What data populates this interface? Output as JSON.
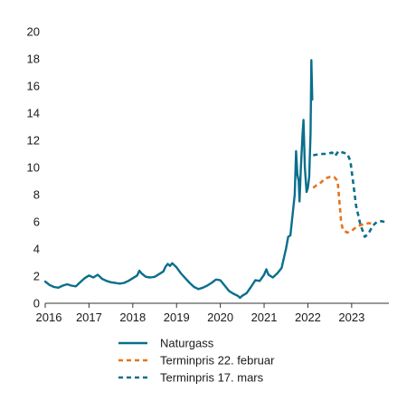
{
  "chart_data": {
    "type": "line",
    "title": "",
    "xlabel": "",
    "ylabel": "",
    "ylim": [
      0,
      20
    ],
    "yticks": [
      0,
      2,
      4,
      6,
      8,
      10,
      12,
      14,
      16,
      18,
      20
    ],
    "xlim": [
      2016.0,
      2023.85
    ],
    "xticks": [
      {
        "label": "2016",
        "value": 2016
      },
      {
        "label": "2017",
        "value": 2017
      },
      {
        "label": "2018",
        "value": 2018
      },
      {
        "label": "2019",
        "value": 2019
      },
      {
        "label": "2020",
        "value": 2020
      },
      {
        "label": "2021",
        "value": 2021
      },
      {
        "label": "2022",
        "value": 2022
      },
      {
        "label": "2023",
        "value": 2023
      }
    ],
    "grid": false,
    "legend_position": "bottom",
    "series": [
      {
        "name": "Naturgass",
        "color": "#0a6f8c",
        "dash": "solid",
        "points": [
          [
            2016.0,
            1.6
          ],
          [
            2016.1,
            1.35
          ],
          [
            2016.2,
            1.2
          ],
          [
            2016.3,
            1.15
          ],
          [
            2016.4,
            1.3
          ],
          [
            2016.5,
            1.4
          ],
          [
            2016.6,
            1.3
          ],
          [
            2016.7,
            1.25
          ],
          [
            2016.8,
            1.55
          ],
          [
            2016.9,
            1.85
          ],
          [
            2017.0,
            2.05
          ],
          [
            2017.1,
            1.9
          ],
          [
            2017.2,
            2.1
          ],
          [
            2017.3,
            1.8
          ],
          [
            2017.4,
            1.65
          ],
          [
            2017.5,
            1.55
          ],
          [
            2017.6,
            1.5
          ],
          [
            2017.7,
            1.45
          ],
          [
            2017.8,
            1.5
          ],
          [
            2017.9,
            1.65
          ],
          [
            2018.0,
            1.85
          ],
          [
            2018.1,
            2.05
          ],
          [
            2018.15,
            2.4
          ],
          [
            2018.2,
            2.2
          ],
          [
            2018.3,
            1.95
          ],
          [
            2018.4,
            1.9
          ],
          [
            2018.5,
            1.95
          ],
          [
            2018.6,
            2.15
          ],
          [
            2018.7,
            2.35
          ],
          [
            2018.75,
            2.7
          ],
          [
            2018.8,
            2.9
          ],
          [
            2018.85,
            2.75
          ],
          [
            2018.9,
            2.95
          ],
          [
            2019.0,
            2.65
          ],
          [
            2019.1,
            2.2
          ],
          [
            2019.2,
            1.85
          ],
          [
            2019.3,
            1.5
          ],
          [
            2019.4,
            1.2
          ],
          [
            2019.5,
            1.05
          ],
          [
            2019.6,
            1.15
          ],
          [
            2019.7,
            1.3
          ],
          [
            2019.8,
            1.5
          ],
          [
            2019.9,
            1.75
          ],
          [
            2020.0,
            1.7
          ],
          [
            2020.1,
            1.3
          ],
          [
            2020.2,
            0.9
          ],
          [
            2020.3,
            0.7
          ],
          [
            2020.4,
            0.55
          ],
          [
            2020.45,
            0.4
          ],
          [
            2020.5,
            0.55
          ],
          [
            2020.6,
            0.75
          ],
          [
            2020.7,
            1.2
          ],
          [
            2020.8,
            1.7
          ],
          [
            2020.9,
            1.65
          ],
          [
            2021.0,
            2.1
          ],
          [
            2021.05,
            2.5
          ],
          [
            2021.1,
            2.1
          ],
          [
            2021.2,
            1.9
          ],
          [
            2021.3,
            2.2
          ],
          [
            2021.4,
            2.6
          ],
          [
            2021.45,
            3.3
          ],
          [
            2021.5,
            4.0
          ],
          [
            2021.55,
            4.9
          ],
          [
            2021.6,
            5.0
          ],
          [
            2021.65,
            6.5
          ],
          [
            2021.7,
            8.0
          ],
          [
            2021.73,
            11.2
          ],
          [
            2021.76,
            9.5
          ],
          [
            2021.79,
            9.0
          ],
          [
            2021.81,
            7.5
          ],
          [
            2021.84,
            10.0
          ],
          [
            2021.88,
            12.5
          ],
          [
            2021.9,
            13.5
          ],
          [
            2021.93,
            10.0
          ],
          [
            2021.97,
            8.2
          ],
          [
            2022.0,
            8.5
          ],
          [
            2022.03,
            9.3
          ],
          [
            2022.06,
            12.5
          ],
          [
            2022.08,
            17.9
          ],
          [
            2022.1,
            15.0
          ]
        ]
      },
      {
        "name": "Terminpris 22. februar",
        "color": "#e8731a",
        "dash": "5,4",
        "points": [
          [
            2022.12,
            8.5
          ],
          [
            2022.2,
            8.7
          ],
          [
            2022.3,
            8.9
          ],
          [
            2022.4,
            9.2
          ],
          [
            2022.5,
            9.3
          ],
          [
            2022.6,
            9.3
          ],
          [
            2022.68,
            9.0
          ],
          [
            2022.72,
            7.5
          ],
          [
            2022.76,
            6.0
          ],
          [
            2022.8,
            5.4
          ],
          [
            2022.9,
            5.2
          ],
          [
            2023.0,
            5.35
          ],
          [
            2023.1,
            5.6
          ],
          [
            2023.2,
            5.75
          ],
          [
            2023.3,
            5.85
          ],
          [
            2023.4,
            5.9
          ],
          [
            2023.5,
            5.85
          ]
        ]
      },
      {
        "name": "Terminpris 17. mars",
        "color": "#0a6f8c",
        "dash": "5,4",
        "points": [
          [
            2022.12,
            10.9
          ],
          [
            2022.3,
            11.0
          ],
          [
            2022.45,
            11.0
          ],
          [
            2022.55,
            11.1
          ],
          [
            2022.62,
            10.85
          ],
          [
            2022.7,
            11.2
          ],
          [
            2022.8,
            11.1
          ],
          [
            2022.9,
            11.0
          ],
          [
            2022.97,
            10.5
          ],
          [
            2023.03,
            9.0
          ],
          [
            2023.1,
            7.2
          ],
          [
            2023.2,
            5.8
          ],
          [
            2023.3,
            4.9
          ],
          [
            2023.38,
            5.1
          ],
          [
            2023.48,
            5.7
          ],
          [
            2023.58,
            6.0
          ],
          [
            2023.68,
            6.05
          ],
          [
            2023.8,
            5.95
          ]
        ]
      }
    ]
  }
}
